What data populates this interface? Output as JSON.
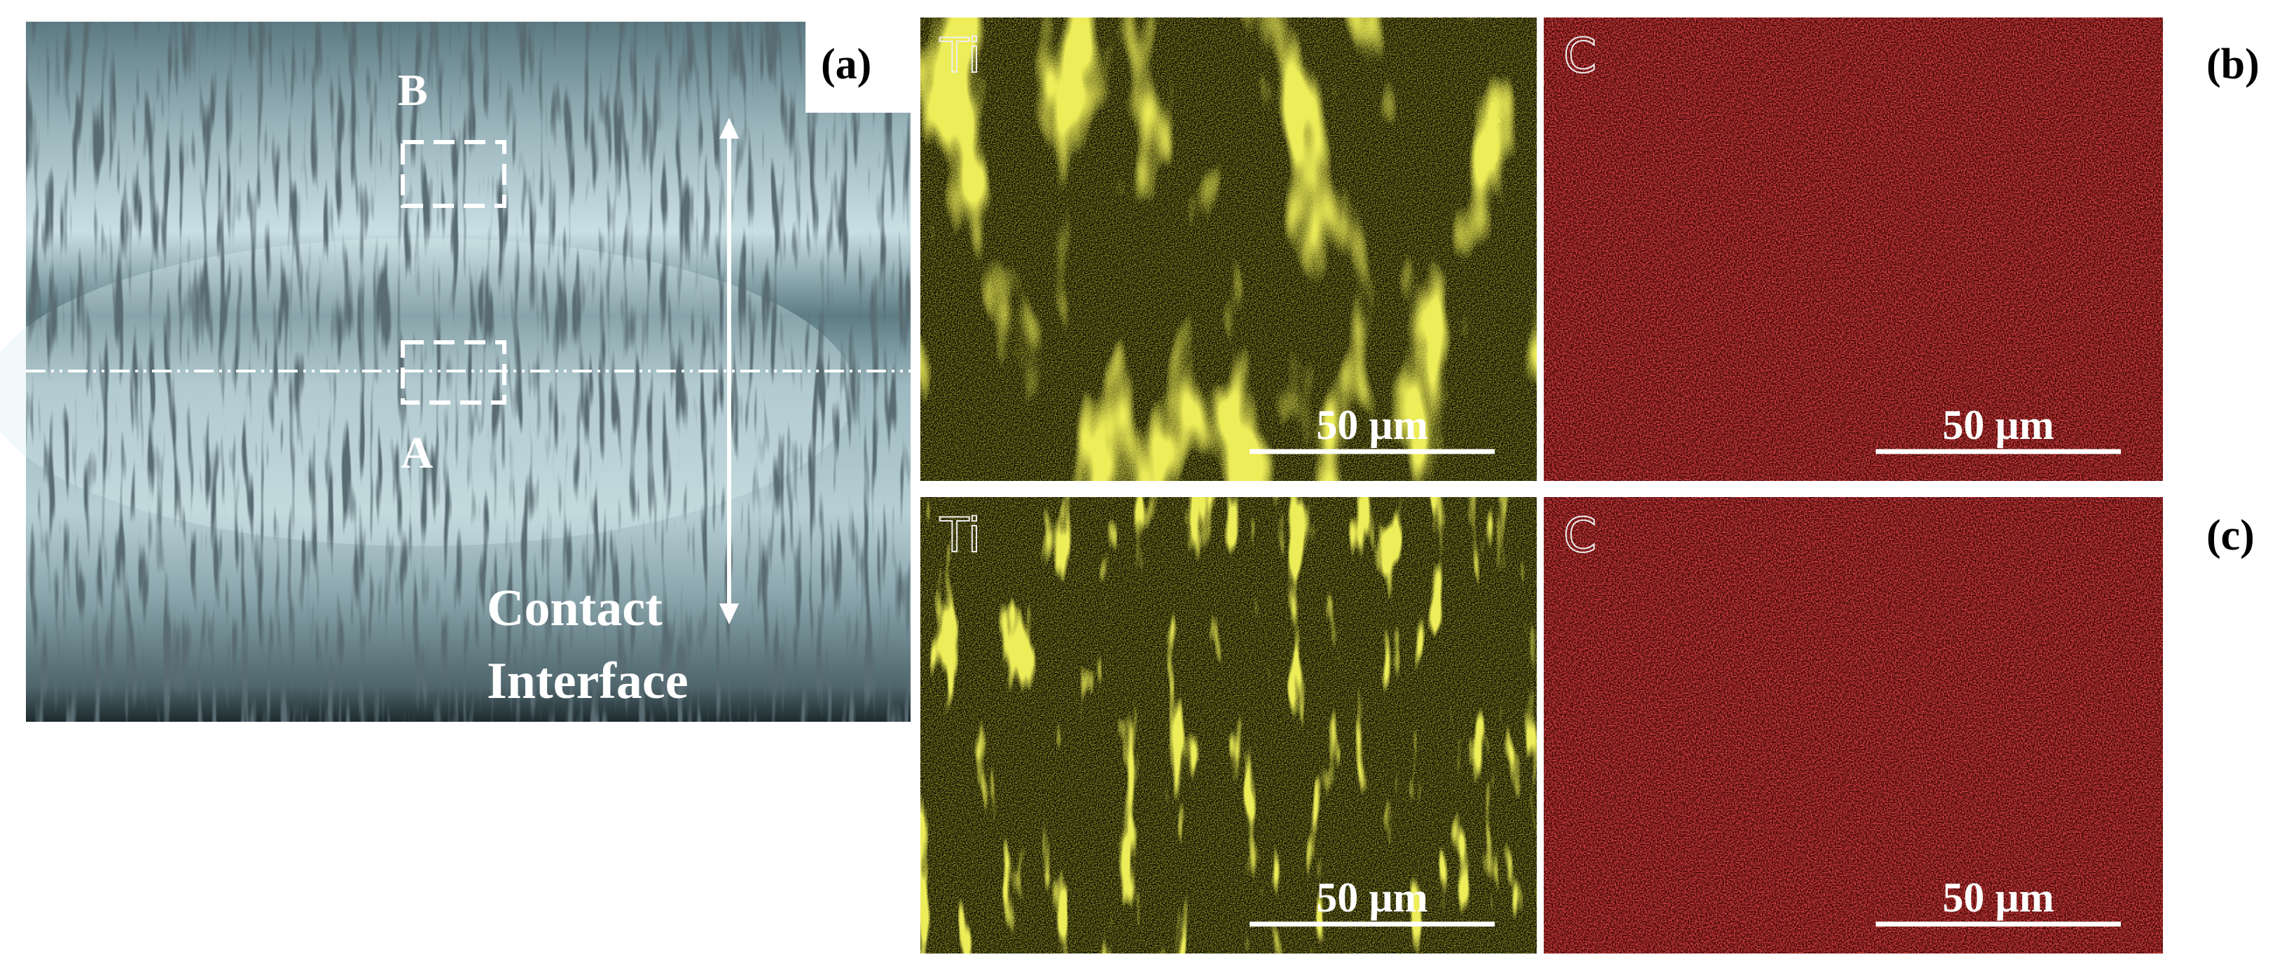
{
  "panel_a": {
    "label": "(a)",
    "box_b": "B",
    "box_a": "A",
    "annotation": [
      "Contact",
      "Interface"
    ]
  },
  "panel_b": {
    "label": "(b)",
    "maps": [
      {
        "element": "Ti",
        "scale_bar": "50 µm"
      },
      {
        "element": "C",
        "scale_bar": "50 µm"
      }
    ]
  },
  "panel_c": {
    "label": "(c)",
    "maps": [
      {
        "element": "Ti",
        "scale_bar": "50 µm"
      },
      {
        "element": "C",
        "scale_bar": "50 µm"
      }
    ]
  }
}
